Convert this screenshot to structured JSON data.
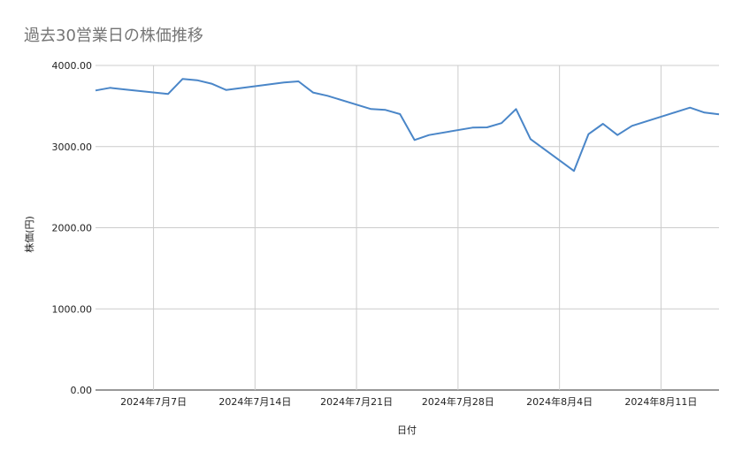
{
  "chart_data": {
    "type": "line",
    "title": "過去30営業日の株価推移",
    "xlabel": "日付",
    "ylabel": "株価(円)",
    "ylim": [
      0,
      4000
    ],
    "xlim": [
      "2024-07-03",
      "2024-08-15"
    ],
    "yticks": [
      "0.00",
      "1000.00",
      "2000.00",
      "3000.00",
      "4000.00"
    ],
    "xticks": [
      {
        "date": "2024-07-07",
        "label": "2024年7月7日"
      },
      {
        "date": "2024-07-14",
        "label": "2024年7月14日"
      },
      {
        "date": "2024-07-21",
        "label": "2024年7月21日"
      },
      {
        "date": "2024-07-28",
        "label": "2024年7月28日"
      },
      {
        "date": "2024-08-04",
        "label": "2024年8月4日"
      },
      {
        "date": "2024-08-11",
        "label": "2024年8月11日"
      }
    ],
    "grid": true,
    "line_color": "#4a86c8",
    "x": [
      "2024-07-03",
      "2024-07-04",
      "2024-07-05",
      "2024-07-08",
      "2024-07-09",
      "2024-07-10",
      "2024-07-11",
      "2024-07-12",
      "2024-07-16",
      "2024-07-17",
      "2024-07-18",
      "2024-07-19",
      "2024-07-22",
      "2024-07-23",
      "2024-07-24",
      "2024-07-25",
      "2024-07-26",
      "2024-07-29",
      "2024-07-30",
      "2024-07-31",
      "2024-08-01",
      "2024-08-02",
      "2024-08-05",
      "2024-08-06",
      "2024-08-07",
      "2024-08-08",
      "2024-08-09",
      "2024-08-13",
      "2024-08-14",
      "2024-08-15"
    ],
    "values": [
      3692,
      3724,
      3705,
      3648,
      3833,
      3818,
      3775,
      3698,
      3790,
      3804,
      3666,
      3626,
      3463,
      3452,
      3401,
      3081,
      3142,
      3234,
      3237,
      3289,
      3463,
      3092,
      2700,
      3153,
      3281,
      3142,
      3256,
      3480,
      3419,
      3398
    ]
  }
}
